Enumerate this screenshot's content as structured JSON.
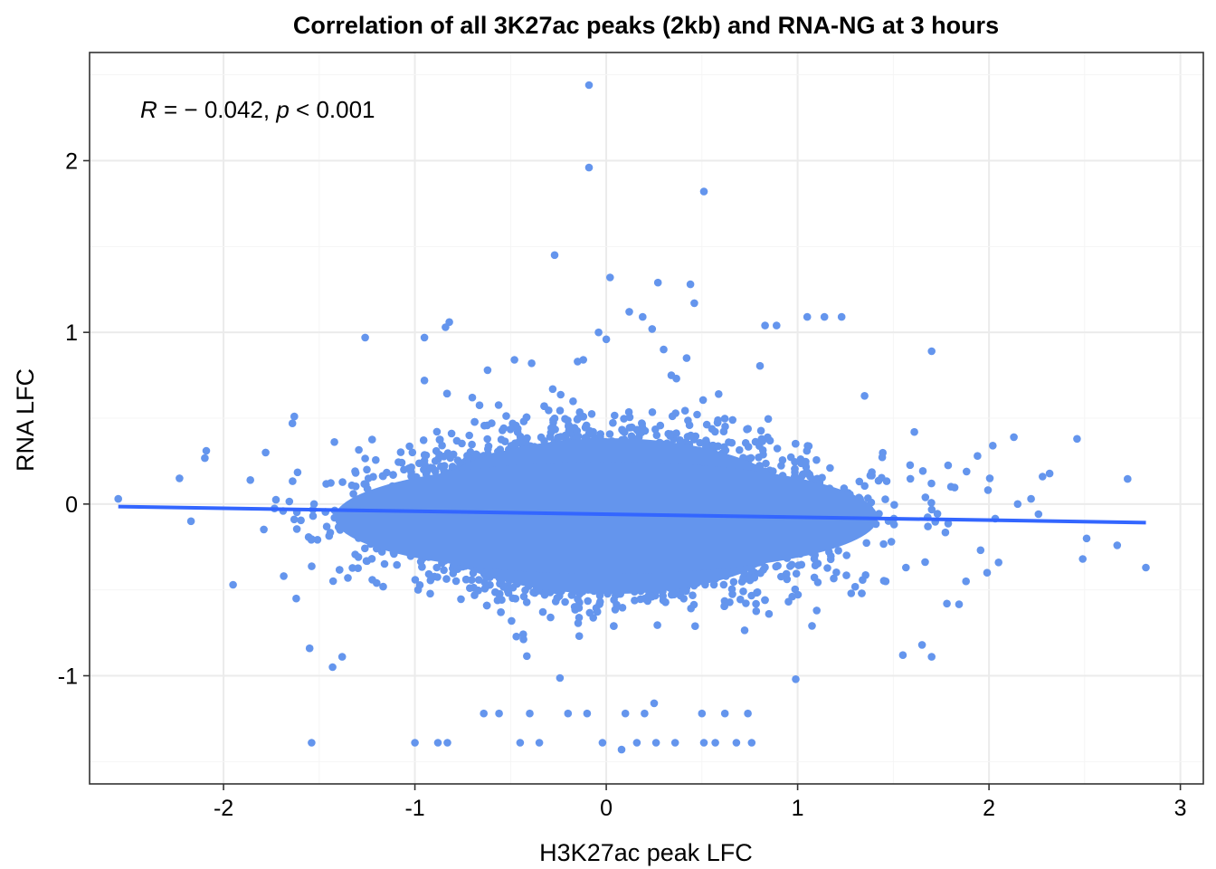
{
  "chart_data": {
    "type": "scatter",
    "title": "Correlation of all 3K27ac peaks (2kb) and RNA-NG at 3 hours",
    "xlabel": "H3K27ac peak LFC",
    "ylabel": "RNA LFC",
    "xlim": [
      -2.7,
      3.12
    ],
    "ylim": [
      -1.63,
      2.63
    ],
    "x_ticks": [
      -2,
      -1,
      0,
      1,
      2,
      3
    ],
    "x_tick_labels": [
      "-2",
      "-1",
      "0",
      "1",
      "2",
      "3"
    ],
    "y_ticks": [
      -1,
      0,
      1,
      2
    ],
    "y_tick_labels": [
      "-1",
      "0",
      "1",
      "2"
    ],
    "grid": true,
    "colors": {
      "points": "#6495ED",
      "fit_line": "#3366FF",
      "grid": "#EBEBEB",
      "panel_border": "#333333"
    },
    "annotation": {
      "r_symbol": "R",
      "r_text": " = − 0.042, ",
      "p_symbol": "p",
      "p_text": " < 0.001"
    },
    "fit_line": {
      "x": [
        -2.55,
        2.82
      ],
      "y": [
        -0.015,
        -0.108
      ]
    },
    "points_note_free": true,
    "outliers": {
      "x": [
        -0.09,
        -0.09,
        0.51,
        -0.27,
        0.02,
        0.27,
        0.44,
        0.46,
        0.12,
        0.19,
        0.24,
        -0.04,
        0.0,
        0.83,
        0.89,
        1.05,
        1.14,
        1.23,
        1.7,
        -0.82,
        -0.84,
        -1.63,
        -1.26,
        -0.95,
        -0.48,
        -0.39,
        -0.12,
        -0.15,
        0.3,
        0.42,
        1.35,
        -2.55,
        -2.23,
        -2.09,
        -1.64,
        1.61,
        2.02,
        2.13,
        2.46,
        2.28,
        2.51,
        2.67,
        2.82,
        2.22,
        2.15,
        2.49,
        1.65,
        1.78,
        1.55,
        1.7,
        -1.54,
        -1.95,
        -2.17,
        -1.55,
        -1.43,
        -1.38,
        -1.0,
        -0.88,
        -0.83,
        -0.45,
        -0.35,
        -0.02,
        0.08,
        0.16,
        0.26,
        0.36,
        0.51,
        0.57,
        0.68,
        0.76,
        0.99,
        0.25,
        -0.64,
        -0.56,
        -0.4,
        -0.2,
        -0.1,
        0.1,
        0.2,
        0.5,
        0.62,
        0.74,
        -1.62,
        -1.35,
        -1.2,
        0.85,
        1.1,
        1.28,
        1.46,
        1.88,
        1.99,
        2.05,
        1.94,
        -1.78,
        -1.86,
        -0.95,
        -0.62,
        -0.7,
        -0.28,
        0.34
      ],
      "y": [
        2.44,
        1.96,
        1.82,
        1.45,
        1.32,
        1.29,
        1.28,
        1.17,
        1.12,
        1.09,
        1.02,
        1.0,
        0.96,
        1.04,
        1.04,
        1.09,
        1.09,
        1.09,
        0.89,
        1.06,
        1.03,
        0.51,
        0.97,
        0.97,
        0.84,
        0.82,
        0.84,
        0.83,
        0.9,
        0.85,
        0.63,
        0.03,
        0.15,
        0.31,
        0.47,
        0.42,
        0.34,
        0.39,
        0.38,
        0.16,
        -0.2,
        -0.24,
        -0.37,
        0.03,
        0.0,
        -0.32,
        -0.82,
        -0.58,
        -0.88,
        -0.89,
        -1.39,
        -0.47,
        -0.1,
        -0.84,
        -0.95,
        -0.89,
        -1.39,
        -1.39,
        -1.39,
        -1.39,
        -1.39,
        -1.39,
        -1.43,
        -1.39,
        -1.39,
        -1.39,
        -1.39,
        -1.39,
        -1.39,
        -1.39,
        -1.02,
        -1.16,
        -1.22,
        -1.22,
        -1.22,
        -1.22,
        -1.22,
        -1.22,
        -1.22,
        -1.22,
        -1.22,
        -1.22,
        -0.55,
        -0.43,
        -0.46,
        -0.64,
        -0.62,
        -0.52,
        -0.45,
        -0.45,
        -0.4,
        -0.34,
        0.28,
        0.3,
        0.14,
        0.72,
        0.78,
        0.62,
        0.67,
        0.75
      ]
    }
  }
}
